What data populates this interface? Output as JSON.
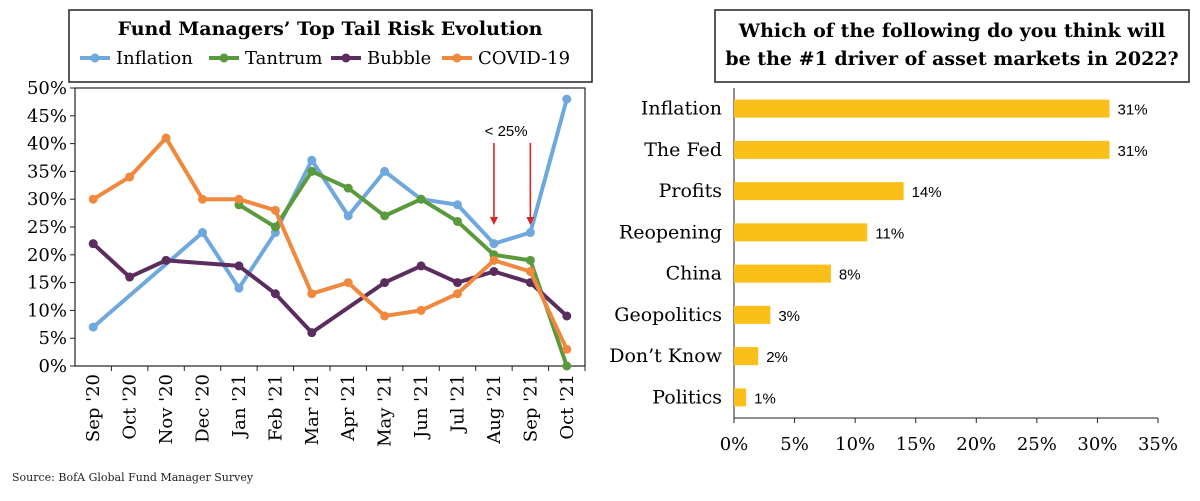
{
  "source": "Source: BofA Global Fund Manager Survey",
  "chart_data": [
    {
      "type": "line",
      "title": "Fund Managers’ Top Tail Risk Evolution",
      "categories": [
        "Sep '20",
        "Oct '20",
        "Nov '20",
        "Dec '20",
        "Jan '21",
        "Feb '21",
        "Mar '21",
        "Apr '21",
        "May '21",
        "Jun '21",
        "Jul '21",
        "Aug '21",
        "Sep '21",
        "Oct '21"
      ],
      "ylim": [
        0,
        50
      ],
      "yticks": [
        "0%",
        "5%",
        "10%",
        "15%",
        "20%",
        "25%",
        "30%",
        "35%",
        "40%",
        "45%",
        "50%"
      ],
      "legend_position": "top",
      "series": [
        {
          "name": "Inflation",
          "color": "#6fa8dc",
          "values": [
            7,
            null,
            null,
            24,
            14,
            24,
            37,
            27,
            35,
            30,
            29,
            22,
            24,
            48
          ]
        },
        {
          "name": "Tantrum",
          "color": "#5a9a3c",
          "values": [
            null,
            null,
            null,
            null,
            29,
            25,
            35,
            32,
            27,
            30,
            26,
            20,
            19,
            0
          ]
        },
        {
          "name": "Bubble",
          "color": "#5b2c5e",
          "values": [
            22,
            16,
            19,
            null,
            18,
            13,
            6,
            null,
            15,
            18,
            15,
            17,
            15,
            9
          ]
        },
        {
          "name": "COVID-19",
          "color": "#f0883e",
          "values": [
            30,
            34,
            41,
            30,
            30,
            28,
            13,
            15,
            9,
            10,
            13,
            19,
            17,
            3
          ]
        }
      ],
      "annotation": "< 25%",
      "annotation_arrow_color": "#d62728",
      "annotation_points": [
        "Aug '21",
        "Sep '21"
      ]
    },
    {
      "type": "bar",
      "orientation": "horizontal",
      "title_line1": "Which of the following do you think will",
      "title_line2": "be the #1 driver of asset markets in 2022?",
      "categories": [
        "Inflation",
        "The Fed",
        "Profits",
        "Reopening",
        "China",
        "Geopolitics",
        "Don’t Know",
        "Politics"
      ],
      "values": [
        31,
        31,
        14,
        11,
        8,
        3,
        2,
        1
      ],
      "value_labels": [
        "31%",
        "31%",
        "14%",
        "11%",
        "8%",
        "3%",
        "2%",
        "1%"
      ],
      "xlim": [
        0,
        35
      ],
      "xticks": [
        "0%",
        "5%",
        "10%",
        "15%",
        "20%",
        "25%",
        "30%",
        "35%"
      ],
      "bar_color": "#fbbf19"
    }
  ]
}
